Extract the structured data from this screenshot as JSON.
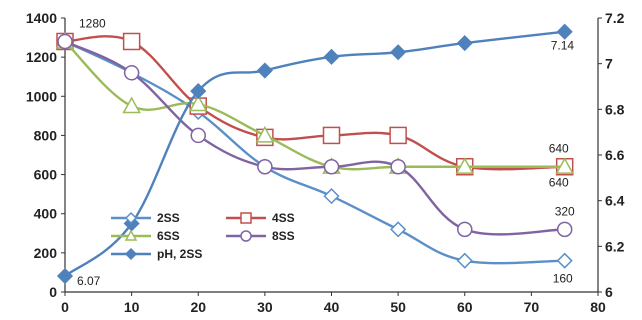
{
  "chart_data": {
    "type": "line",
    "x_axis": {
      "range": [
        0,
        80
      ],
      "ticks": [
        0,
        10,
        20,
        30,
        40,
        50,
        60,
        70,
        80
      ]
    },
    "y_left": {
      "range": [
        0,
        1400
      ],
      "ticks": [
        0,
        200,
        400,
        600,
        800,
        1000,
        1200,
        1400
      ]
    },
    "y_right": {
      "range": [
        6,
        7.2
      ],
      "ticks": [
        "6",
        "6.2",
        "6.4",
        "6.6",
        "6.8",
        "7",
        "7.2"
      ]
    },
    "grid": false,
    "legend_placement": "bottom-center",
    "series": [
      {
        "name": "2SS",
        "axis": "left",
        "color": "#5b8fc9",
        "marker": "diamond-open",
        "smooth": true,
        "points": [
          [
            0,
            1280
          ],
          [
            10,
            1120
          ],
          [
            20,
            920
          ],
          [
            30,
            640
          ],
          [
            40,
            490
          ],
          [
            50,
            320
          ],
          [
            60,
            160
          ],
          [
            75,
            160
          ]
        ]
      },
      {
        "name": "4SS",
        "axis": "left",
        "color": "#c0504d",
        "marker": "square-open",
        "smooth": true,
        "points": [
          [
            0,
            1280
          ],
          [
            10,
            1280
          ],
          [
            20,
            950
          ],
          [
            30,
            790
          ],
          [
            40,
            800
          ],
          [
            50,
            800
          ],
          [
            60,
            640
          ],
          [
            75,
            640
          ]
        ]
      },
      {
        "name": "6SS",
        "axis": "left",
        "color": "#9bbb59",
        "marker": "triangle-open",
        "smooth": true,
        "points": [
          [
            0,
            1280
          ],
          [
            10,
            950
          ],
          [
            20,
            960
          ],
          [
            30,
            800
          ],
          [
            40,
            640
          ],
          [
            50,
            640
          ],
          [
            60,
            640
          ],
          [
            75,
            640
          ]
        ]
      },
      {
        "name": "8SS",
        "axis": "left",
        "color": "#8064a2",
        "marker": "circle-open",
        "smooth": true,
        "points": [
          [
            0,
            1280
          ],
          [
            10,
            1120
          ],
          [
            20,
            800
          ],
          [
            30,
            640
          ],
          [
            40,
            640
          ],
          [
            50,
            640
          ],
          [
            60,
            320
          ],
          [
            75,
            320
          ]
        ]
      },
      {
        "name": "pH, 2SS",
        "axis": "right",
        "color": "#4f81bd",
        "marker": "diamond-filled",
        "smooth": true,
        "points": [
          [
            0,
            6.07
          ],
          [
            10,
            6.3
          ],
          [
            20,
            6.88
          ],
          [
            30,
            6.97
          ],
          [
            40,
            7.03
          ],
          [
            50,
            7.05
          ],
          [
            60,
            7.09
          ],
          [
            75,
            7.14
          ]
        ]
      }
    ],
    "annotations": [
      {
        "text": "1280",
        "x": 0,
        "y": 1280,
        "axis": "left"
      },
      {
        "text": "6.07",
        "x": 0,
        "y": 6.07,
        "axis": "right"
      },
      {
        "text": "7.14",
        "x": 75,
        "y": 7.14,
        "axis": "right"
      },
      {
        "text": "640",
        "x": 75,
        "y": 640,
        "axis": "left"
      },
      {
        "text": "640",
        "x": 75,
        "y": 640,
        "axis": "left"
      },
      {
        "text": "320",
        "x": 75,
        "y": 320,
        "axis": "left"
      },
      {
        "text": "160",
        "x": 75,
        "y": 160,
        "axis": "left"
      }
    ]
  }
}
